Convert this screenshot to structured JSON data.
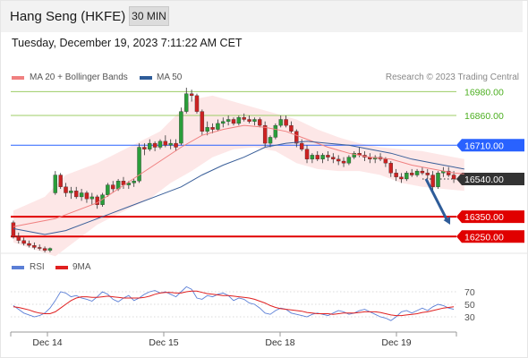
{
  "header": {
    "title": "Hang Seng (HKFE)",
    "timeframe": "30 MIN"
  },
  "timestamp": "Tuesday, December 19, 2023 7:11:22 AM CET",
  "credit": "Research © 2023 Trading Central",
  "legend_main": [
    {
      "label": "MA 20 + Bollinger Bands",
      "color": "#f08080"
    },
    {
      "label": "MA 50",
      "color": "#2e5c99"
    }
  ],
  "legend_rsi": [
    {
      "label": "RSI",
      "color": "#5b7fd6"
    },
    {
      "label": "9MA",
      "color": "#e02020"
    }
  ],
  "colors": {
    "up": "#2a9d3a",
    "down": "#cc2222",
    "resistance_green": "#9ccc65",
    "pivot_blue": "#2962ff",
    "support_red": "#e00000",
    "last_price": "#333333"
  },
  "chart_data": {
    "type": "candlestick",
    "x_ticks": [
      "Dec 14",
      "Dec 15",
      "Dec 18",
      "Dec 19"
    ],
    "ylim": [
      16170,
      17000
    ],
    "price_levels": [
      {
        "label": "16980.00",
        "value": 16980,
        "kind": "resistance"
      },
      {
        "label": "16860.00",
        "value": 16860,
        "kind": "resistance"
      },
      {
        "label": "16710.00",
        "value": 16710,
        "kind": "pivot"
      },
      {
        "label": "16540.00",
        "value": 16540,
        "kind": "last"
      },
      {
        "label": "16350.00",
        "value": 16350,
        "kind": "support"
      },
      {
        "label": "16250.00",
        "value": 16250,
        "kind": "support"
      }
    ],
    "candles": [
      [
        16320,
        16330,
        16240,
        16250
      ],
      [
        16250,
        16270,
        16215,
        16230
      ],
      [
        16230,
        16245,
        16205,
        16215
      ],
      [
        16215,
        16230,
        16195,
        16205
      ],
      [
        16205,
        16220,
        16185,
        16195
      ],
      [
        16195,
        16210,
        16180,
        16190
      ],
      [
        16190,
        16200,
        16170,
        16180
      ],
      [
        16180,
        16195,
        16170,
        16190
      ],
      [
        16470,
        16580,
        16460,
        16560
      ],
      [
        16560,
        16570,
        16490,
        16500
      ],
      [
        16500,
        16520,
        16450,
        16470
      ],
      [
        16470,
        16500,
        16440,
        16480
      ],
      [
        16480,
        16500,
        16440,
        16450
      ],
      [
        16450,
        16490,
        16430,
        16470
      ],
      [
        16470,
        16480,
        16420,
        16440
      ],
      [
        16440,
        16470,
        16410,
        16450
      ],
      [
        16450,
        16460,
        16390,
        16410
      ],
      [
        16410,
        16470,
        16400,
        16460
      ],
      [
        16460,
        16520,
        16450,
        16510
      ],
      [
        16510,
        16530,
        16470,
        16490
      ],
      [
        16490,
        16540,
        16480,
        16530
      ],
      [
        16530,
        16550,
        16490,
        16510
      ],
      [
        16510,
        16530,
        16490,
        16520
      ],
      [
        16520,
        16540,
        16500,
        16530
      ],
      [
        16530,
        16720,
        16520,
        16700
      ],
      [
        16700,
        16720,
        16660,
        16690
      ],
      [
        16690,
        16740,
        16680,
        16720
      ],
      [
        16720,
        16730,
        16680,
        16700
      ],
      [
        16700,
        16740,
        16690,
        16730
      ],
      [
        16730,
        16760,
        16700,
        16710
      ],
      [
        16710,
        16740,
        16690,
        16720
      ],
      [
        16720,
        16740,
        16680,
        16700
      ],
      [
        16720,
        16900,
        16710,
        16880
      ],
      [
        16880,
        17000,
        16870,
        16970
      ],
      [
        16970,
        16990,
        16930,
        16960
      ],
      [
        16960,
        16970,
        16870,
        16880
      ],
      [
        16880,
        16890,
        16760,
        16780
      ],
      [
        16780,
        16830,
        16760,
        16800
      ],
      [
        16800,
        16820,
        16770,
        16790
      ],
      [
        16790,
        16840,
        16780,
        16820
      ],
      [
        16820,
        16850,
        16800,
        16830
      ],
      [
        16830,
        16860,
        16810,
        16840
      ],
      [
        16840,
        16850,
        16810,
        16820
      ],
      [
        16820,
        16860,
        16810,
        16850
      ],
      [
        16850,
        16870,
        16830,
        16840
      ],
      [
        16840,
        16860,
        16820,
        16830
      ],
      [
        16830,
        16850,
        16810,
        16840
      ],
      [
        16840,
        16850,
        16800,
        16810
      ],
      [
        16810,
        16830,
        16700,
        16720
      ],
      [
        16720,
        16760,
        16700,
        16750
      ],
      [
        16750,
        16820,
        16740,
        16810
      ],
      [
        16810,
        16860,
        16800,
        16840
      ],
      [
        16840,
        16860,
        16800,
        16810
      ],
      [
        16810,
        16830,
        16770,
        16780
      ],
      [
        16780,
        16790,
        16700,
        16720
      ],
      [
        16720,
        16740,
        16680,
        16690
      ],
      [
        16690,
        16710,
        16620,
        16640
      ],
      [
        16640,
        16670,
        16620,
        16660
      ],
      [
        16660,
        16680,
        16630,
        16640
      ],
      [
        16640,
        16670,
        16620,
        16660
      ],
      [
        16660,
        16680,
        16630,
        16650
      ],
      [
        16650,
        16670,
        16620,
        16640
      ],
      [
        16640,
        16660,
        16610,
        16630
      ],
      [
        16630,
        16650,
        16600,
        16620
      ],
      [
        16620,
        16660,
        16610,
        16650
      ],
      [
        16650,
        16680,
        16640,
        16670
      ],
      [
        16670,
        16700,
        16650,
        16660
      ],
      [
        16660,
        16680,
        16630,
        16650
      ],
      [
        16650,
        16670,
        16620,
        16640
      ],
      [
        16640,
        16660,
        16620,
        16650
      ],
      [
        16650,
        16670,
        16630,
        16640
      ],
      [
        16640,
        16650,
        16600,
        16620
      ],
      [
        16620,
        16630,
        16550,
        16570
      ],
      [
        16570,
        16590,
        16530,
        16550
      ],
      [
        16550,
        16570,
        16520,
        16540
      ],
      [
        16540,
        16580,
        16530,
        16570
      ],
      [
        16570,
        16590,
        16550,
        16560
      ],
      [
        16560,
        16590,
        16550,
        16580
      ],
      [
        16580,
        16600,
        16560,
        16570
      ],
      [
        16570,
        16590,
        16540,
        16560
      ],
      [
        16560,
        16580,
        16480,
        16500
      ],
      [
        16500,
        16580,
        16490,
        16570
      ],
      [
        16570,
        16600,
        16550,
        16580
      ],
      [
        16580,
        16600,
        16550,
        16560
      ],
      [
        16560,
        16580,
        16520,
        16540
      ]
    ],
    "ma20": [
      [
        0,
        16300
      ],
      [
        8,
        16340
      ],
      [
        16,
        16420
      ],
      [
        24,
        16560
      ],
      [
        28,
        16630
      ],
      [
        32,
        16700
      ],
      [
        36,
        16760
      ],
      [
        40,
        16790
      ],
      [
        44,
        16810
      ],
      [
        48,
        16800
      ],
      [
        52,
        16780
      ],
      [
        56,
        16740
      ],
      [
        60,
        16700
      ],
      [
        64,
        16670
      ],
      [
        68,
        16650
      ],
      [
        72,
        16640
      ],
      [
        76,
        16610
      ],
      [
        80,
        16590
      ],
      [
        84,
        16570
      ],
      [
        86,
        16565
      ]
    ],
    "bb_upper": [
      [
        0,
        16380
      ],
      [
        6,
        16450
      ],
      [
        10,
        16560
      ],
      [
        16,
        16620
      ],
      [
        22,
        16700
      ],
      [
        28,
        16780
      ],
      [
        34,
        16940
      ],
      [
        38,
        16960
      ],
      [
        42,
        16930
      ],
      [
        46,
        16900
      ],
      [
        50,
        16870
      ],
      [
        54,
        16840
      ],
      [
        58,
        16790
      ],
      [
        62,
        16750
      ],
      [
        66,
        16720
      ],
      [
        70,
        16700
      ],
      [
        74,
        16690
      ],
      [
        78,
        16680
      ],
      [
        82,
        16660
      ],
      [
        86,
        16640
      ]
    ],
    "bb_lower": [
      [
        0,
        16220
      ],
      [
        8,
        16150
      ],
      [
        12,
        16230
      ],
      [
        16,
        16310
      ],
      [
        22,
        16390
      ],
      [
        26,
        16440
      ],
      [
        30,
        16520
      ],
      [
        34,
        16580
      ],
      [
        38,
        16650
      ],
      [
        42,
        16690
      ],
      [
        46,
        16700
      ],
      [
        50,
        16680
      ],
      [
        54,
        16620
      ],
      [
        58,
        16590
      ],
      [
        62,
        16580
      ],
      [
        66,
        16580
      ],
      [
        70,
        16560
      ],
      [
        74,
        16520
      ],
      [
        78,
        16500
      ],
      [
        86,
        16480
      ]
    ],
    "ma50": [
      [
        0,
        16290
      ],
      [
        6,
        16260
      ],
      [
        10,
        16280
      ],
      [
        16,
        16340
      ],
      [
        22,
        16400
      ],
      [
        28,
        16460
      ],
      [
        32,
        16500
      ],
      [
        36,
        16560
      ],
      [
        40,
        16610
      ],
      [
        44,
        16650
      ],
      [
        48,
        16700
      ],
      [
        52,
        16720
      ],
      [
        56,
        16730
      ],
      [
        60,
        16720
      ],
      [
        64,
        16710
      ],
      [
        68,
        16690
      ],
      [
        72,
        16670
      ],
      [
        76,
        16640
      ],
      [
        80,
        16620
      ],
      [
        86,
        16590
      ]
    ],
    "forecast_arrow": {
      "from": 16540,
      "to": 16310
    },
    "rsi": {
      "ticks": [
        70,
        50,
        30
      ],
      "ylim": [
        10,
        90
      ],
      "rsi_values": [
        48,
        42,
        36,
        33,
        30,
        32,
        36,
        44,
        56,
        70,
        68,
        62,
        64,
        60,
        58,
        55,
        62,
        70,
        66,
        58,
        54,
        60,
        64,
        56,
        60,
        66,
        70,
        72,
        68,
        70,
        66,
        62,
        70,
        78,
        74,
        60,
        58,
        64,
        62,
        66,
        68,
        64,
        56,
        60,
        58,
        52,
        50,
        44,
        36,
        34,
        40,
        44,
        42,
        36,
        34,
        32,
        30,
        34,
        36,
        34,
        32,
        36,
        40,
        38,
        34,
        36,
        40,
        42,
        38,
        34,
        30,
        28,
        24,
        30,
        38,
        40,
        36,
        40,
        44,
        40,
        46,
        50,
        48,
        44,
        42
      ],
      "ma9_values": [
        46,
        45,
        43,
        41,
        38,
        36,
        35,
        35,
        38,
        44,
        50,
        56,
        60,
        62,
        62,
        61,
        61,
        62,
        63,
        62,
        61,
        60,
        60,
        60,
        60,
        61,
        63,
        66,
        68,
        69,
        69,
        68,
        68,
        70,
        71,
        71,
        69,
        67,
        66,
        65,
        64,
        64,
        63,
        62,
        61,
        60,
        58,
        55,
        52,
        48,
        45,
        43,
        42,
        41,
        40,
        39,
        37,
        36,
        35,
        35,
        35,
        34,
        35,
        36,
        36,
        36,
        37,
        38,
        38,
        38,
        37,
        35,
        33,
        32,
        32,
        33,
        34,
        35,
        37,
        38,
        40,
        42,
        44,
        45,
        46
      ]
    }
  }
}
